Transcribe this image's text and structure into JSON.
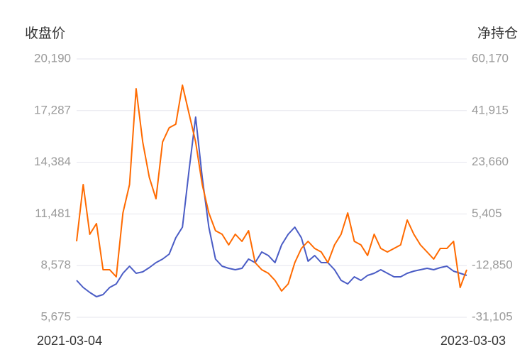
{
  "chart_data": {
    "type": "line",
    "ylabel": "收盘价",
    "y2label": "净持仓",
    "categories": [
      "2021-03-04",
      null,
      null,
      null,
      null,
      null,
      null,
      null,
      null,
      null,
      null,
      null,
      null,
      null,
      null,
      null,
      null,
      null,
      null,
      null,
      null,
      null,
      null,
      null,
      null,
      null,
      null,
      null,
      null,
      null,
      null,
      null,
      null,
      null,
      null,
      null,
      null,
      null,
      null,
      null,
      null,
      null,
      null,
      null,
      null,
      null,
      null,
      null,
      null,
      null,
      null,
      null,
      null,
      null,
      null,
      null,
      null,
      null,
      null,
      "2023-03-03"
    ],
    "series": [
      {
        "color": "#4a5cc5",
        "values": [
          7747,
          7349,
          7070,
          6830,
          6950,
          7349,
          7548,
          8146,
          8545,
          8146,
          8226,
          8465,
          8744,
          8944,
          9223,
          10140,
          10738,
          13929,
          16920,
          13530,
          10738,
          8944,
          8545,
          8425,
          8346,
          8425,
          8944,
          8744,
          9343,
          9143,
          8744,
          9741,
          10340,
          10738,
          10140,
          8824,
          9143,
          8744,
          8744,
          8346,
          7747,
          7548,
          7947,
          7747,
          8027,
          8146,
          8346,
          8146,
          7947,
          7947,
          8146,
          8266,
          8346,
          8425,
          8346,
          8465,
          8545,
          8266,
          8146,
          8027
        ]
      },
      {
        "color": "#ff6a00",
        "axis": "y2",
        "values": [
          -4273,
          15787,
          -1765,
          1996,
          -14303,
          -14303,
          -16810,
          5757,
          15787,
          49638,
          30832,
          18295,
          10772,
          30832,
          35847,
          37101,
          50892,
          40862,
          30832,
          15787,
          5757,
          -512,
          -1765,
          -5527,
          -1765,
          -4273,
          -512,
          -11795,
          -14303,
          -15557,
          -18064,
          -21825,
          -19318,
          -11795,
          -6780,
          -4273,
          -6780,
          -8034,
          -11795,
          -5527,
          -1765,
          5757,
          -4273,
          -5527,
          -9288,
          -1765,
          -6780,
          -8034,
          -6780,
          -5527,
          3250,
          -1765,
          -5527,
          -8034,
          -10542,
          -6780,
          -6780,
          -4273,
          -20572,
          -14303
        ]
      }
    ],
    "ylim": [
      5675,
      20190
    ],
    "yticks": [
      {
        "value": 20190,
        "label": "20,190"
      },
      {
        "value": 17287,
        "label": "17,287"
      },
      {
        "value": 14384,
        "label": "14,384"
      },
      {
        "value": 11481,
        "label": "11,481"
      },
      {
        "value": 8578,
        "label": "8,578"
      },
      {
        "value": 5675,
        "label": "5,675"
      }
    ],
    "y2lim": [
      -31105,
      60170
    ],
    "y2ticks": [
      {
        "value": 60170,
        "label": "60,170"
      },
      {
        "value": 41915,
        "label": "41,915"
      },
      {
        "value": 23660,
        "label": "23,660"
      },
      {
        "value": 5405,
        "label": "5,405"
      },
      {
        "value": -12850,
        "label": "-12,850"
      },
      {
        "value": -31105,
        "label": "-31,105"
      }
    ],
    "grid": true
  }
}
